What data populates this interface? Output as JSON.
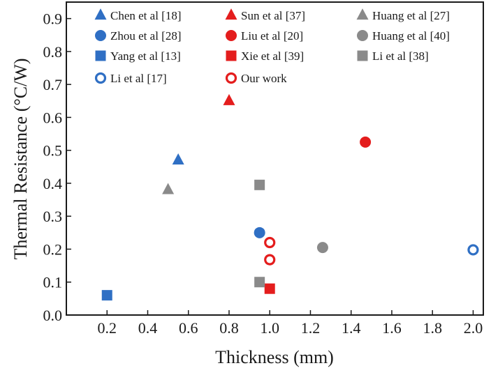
{
  "chart_data": {
    "type": "scatter",
    "xlabel": "Thickness (mm)",
    "ylabel": "Thermal Resistance (°C/W)",
    "xlim": [
      0,
      2.05
    ],
    "ylim": [
      0,
      0.95
    ],
    "xticks": [
      "0.2",
      "0.4",
      "0.6",
      "0.8",
      "1.0",
      "1.2",
      "1.4",
      "1.6",
      "1.8",
      "2.0"
    ],
    "yticks": [
      "0.0",
      "0.1",
      "0.2",
      "0.3",
      "0.4",
      "0.5",
      "0.6",
      "0.7",
      "0.8",
      "0.9"
    ],
    "grid": false,
    "legend_position": "top",
    "colors": {
      "blue": "#2f6fc4",
      "red": "#e41d1d",
      "gray": "#8a8a8a"
    },
    "series": [
      {
        "name": "Chen et al [18]",
        "marker": "triangle",
        "color": "#2f6fc4",
        "points": [
          {
            "x": 0.55,
            "y": 0.47
          }
        ]
      },
      {
        "name": "Sun et al [37]",
        "marker": "triangle",
        "color": "#e41d1d",
        "points": [
          {
            "x": 0.8,
            "y": 0.65
          }
        ]
      },
      {
        "name": "Huang et al [27]",
        "marker": "triangle",
        "color": "#8a8a8a",
        "points": [
          {
            "x": 0.5,
            "y": 0.38
          }
        ]
      },
      {
        "name": "Zhou et al [28]",
        "marker": "circle",
        "color": "#2f6fc4",
        "points": [
          {
            "x": 0.95,
            "y": 0.25
          }
        ]
      },
      {
        "name": "Liu et al [20]",
        "marker": "circle",
        "color": "#e41d1d",
        "points": [
          {
            "x": 1.47,
            "y": 0.525
          }
        ]
      },
      {
        "name": "Huang et al [40]",
        "marker": "circle",
        "color": "#8a8a8a",
        "points": [
          {
            "x": 1.26,
            "y": 0.205
          }
        ]
      },
      {
        "name": "Yang et al [13]",
        "marker": "square",
        "color": "#2f6fc4",
        "points": [
          {
            "x": 0.2,
            "y": 0.06
          }
        ]
      },
      {
        "name": "Xie et al [39]",
        "marker": "square",
        "color": "#e41d1d",
        "points": [
          {
            "x": 1.0,
            "y": 0.08
          }
        ]
      },
      {
        "name": "Li et al [38]",
        "marker": "square",
        "color": "#8a8a8a",
        "points": [
          {
            "x": 0.95,
            "y": 0.395
          },
          {
            "x": 0.95,
            "y": 0.1
          }
        ]
      },
      {
        "name": "Li et al [17]",
        "marker": "circle-open",
        "color": "#2f6fc4",
        "points": [
          {
            "x": 2.0,
            "y": 0.198
          }
        ]
      },
      {
        "name": "Our work",
        "marker": "circle-open",
        "color": "#e41d1d",
        "points": [
          {
            "x": 1.0,
            "y": 0.22
          },
          {
            "x": 1.0,
            "y": 0.168
          }
        ]
      }
    ]
  }
}
